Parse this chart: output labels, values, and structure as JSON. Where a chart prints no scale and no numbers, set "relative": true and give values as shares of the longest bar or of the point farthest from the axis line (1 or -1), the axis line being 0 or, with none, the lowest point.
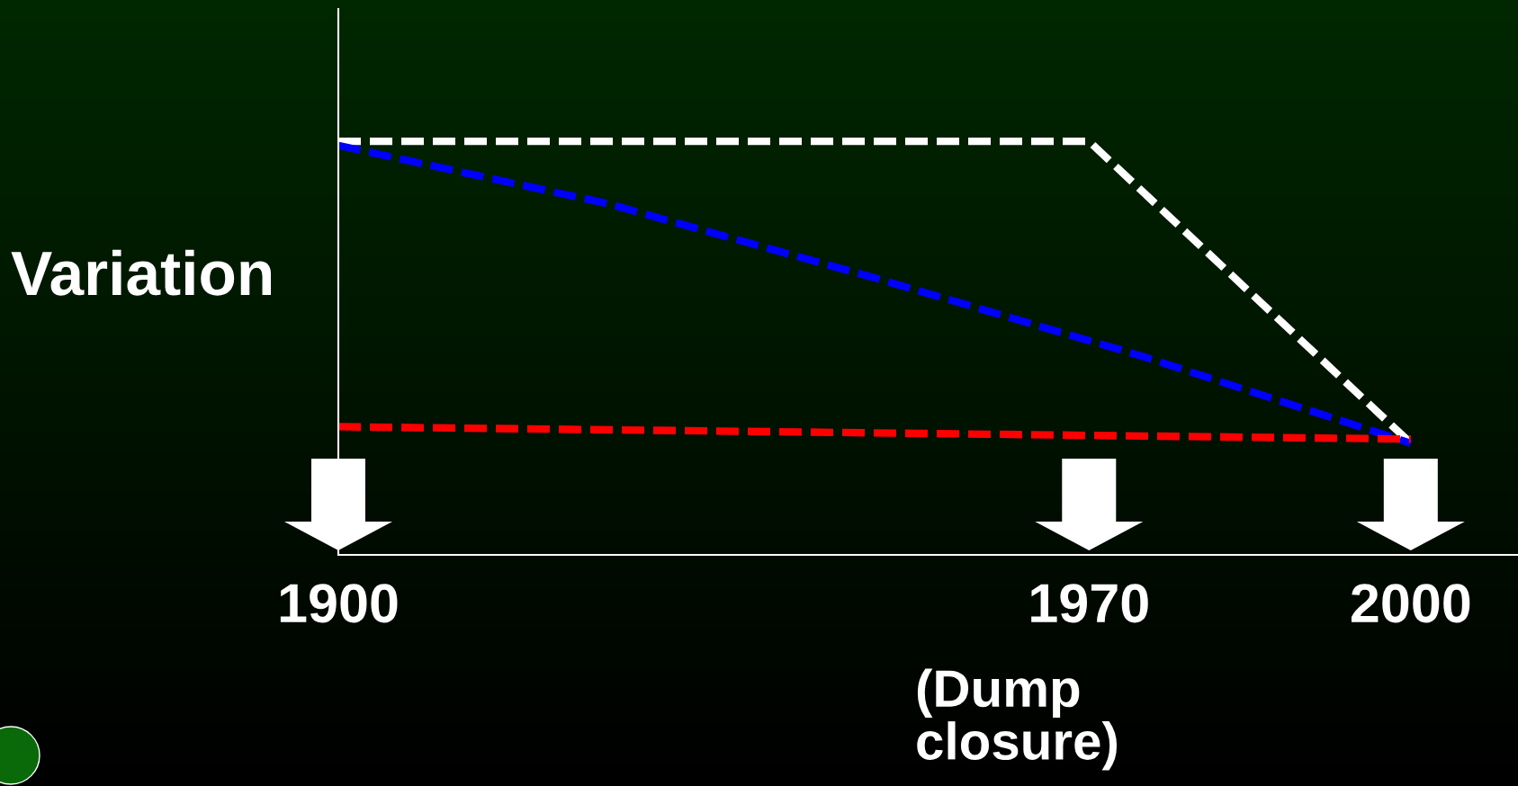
{
  "chart_data": {
    "type": "line",
    "relative": true,
    "ylabel": "Variation",
    "annotations": [
      "(Dump closure)"
    ],
    "xlim": [
      1900,
      2010
    ],
    "xticks": [
      1900,
      1970,
      2000
    ],
    "line_style": "dashed",
    "marker": "none",
    "grid": false,
    "legend": false,
    "series": [
      {
        "color": "#ffffff",
        "x": [
          1900,
          1970,
          2000
        ],
        "values": [
          1.0,
          1.0,
          0.27
        ]
      },
      {
        "color": "#0000ff",
        "x": [
          1900,
          1925,
          1950,
          1975,
          2000
        ],
        "values": [
          0.99,
          0.85,
          0.67,
          0.48,
          0.27
        ]
      },
      {
        "color": "#ff0000",
        "x": [
          1900,
          2000
        ],
        "values": [
          0.31,
          0.28
        ]
      }
    ]
  }
}
